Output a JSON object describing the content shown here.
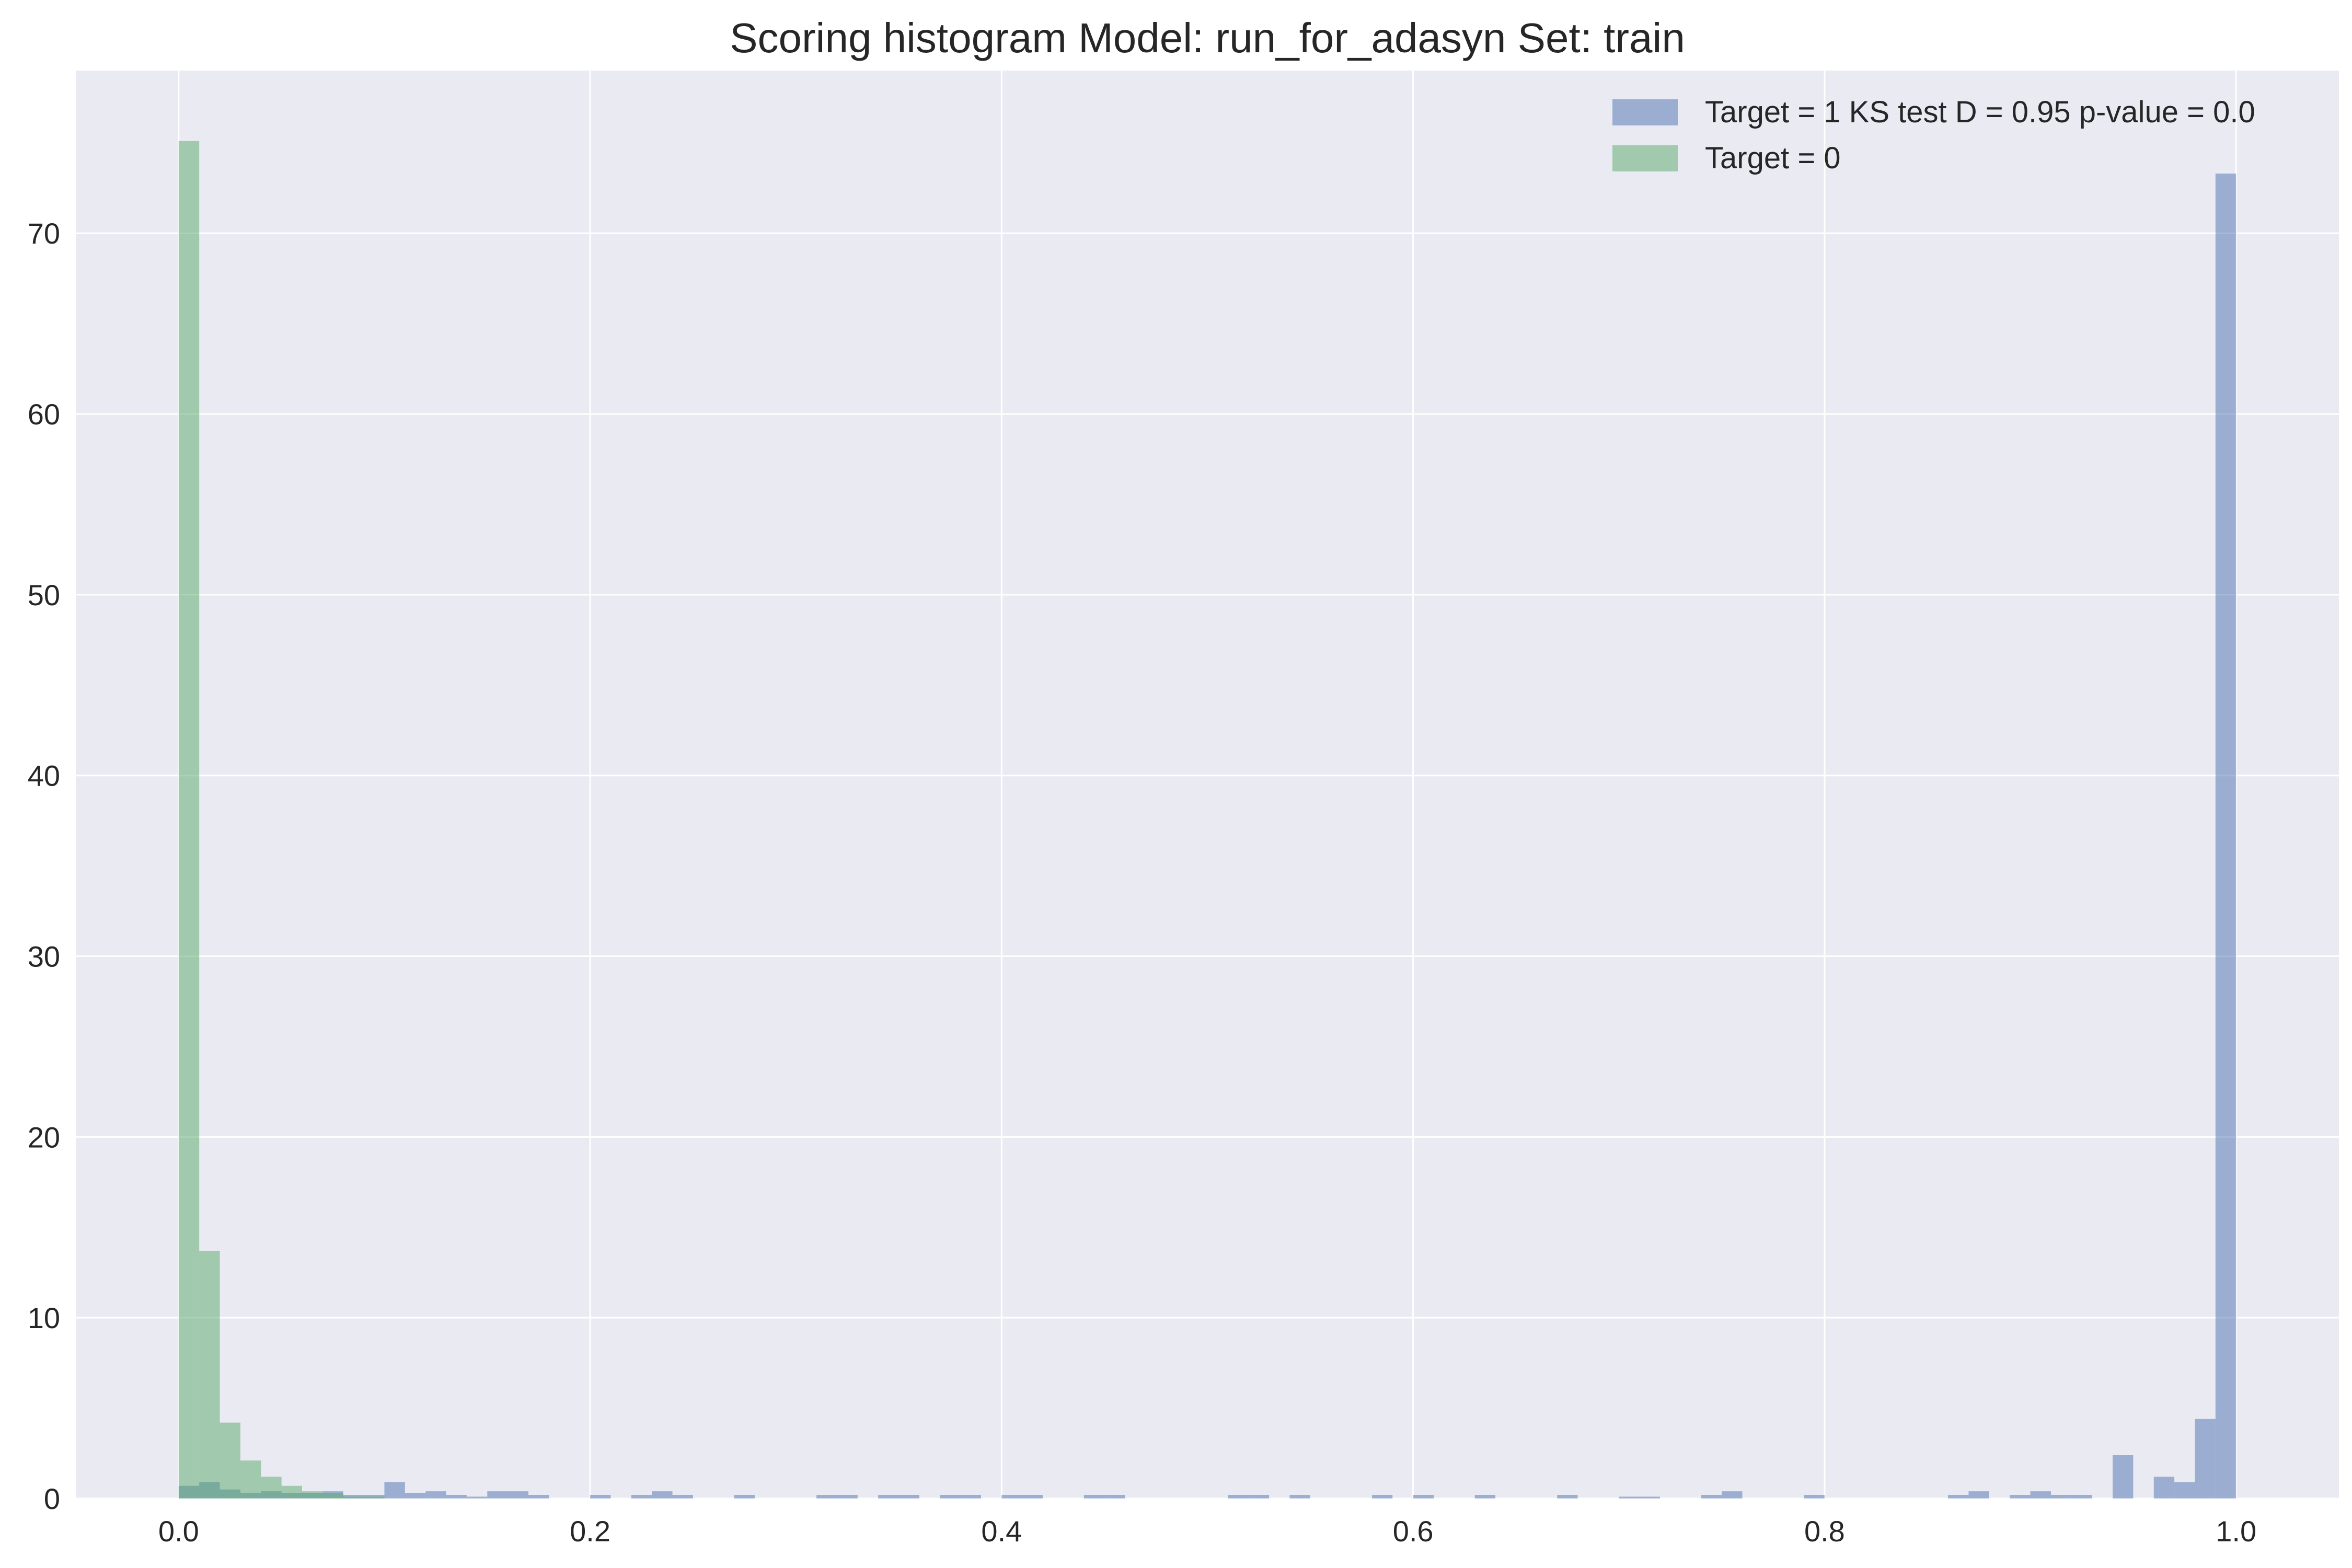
{
  "chart_data": {
    "type": "bar",
    "title": "Scoring histogram Model: run_for_adasyn Set: train",
    "xlabel": "",
    "ylabel": "",
    "xlim": [
      -0.05,
      1.05
    ],
    "ylim": [
      0,
      79
    ],
    "x_ticks": [
      0.0,
      0.2,
      0.4,
      0.6,
      0.8,
      1.0
    ],
    "x_tick_labels": [
      "0.0",
      "0.2",
      "0.4",
      "0.6",
      "0.8",
      "1.0"
    ],
    "y_ticks": [
      0,
      10,
      20,
      30,
      40,
      50,
      60,
      70
    ],
    "y_tick_labels": [
      "0",
      "10",
      "20",
      "30",
      "40",
      "50",
      "60",
      "70"
    ],
    "grid": true,
    "legend_position": "top-right",
    "bin_width": 0.01,
    "background_color": "#eaeaf2",
    "grid_color": "#ffffff",
    "series": [
      {
        "name": "Target = 1 KS test D = 0.95 p-value = 0.0",
        "color": "#4c72b0",
        "opacity": 0.5,
        "bins": [
          [
            0.0,
            0.7
          ],
          [
            0.01,
            0.9
          ],
          [
            0.02,
            0.5
          ],
          [
            0.03,
            0.3
          ],
          [
            0.04,
            0.4
          ],
          [
            0.05,
            0.3
          ],
          [
            0.06,
            0.3
          ],
          [
            0.07,
            0.4
          ],
          [
            0.08,
            0.2
          ],
          [
            0.09,
            0.2
          ],
          [
            0.1,
            0.9
          ],
          [
            0.11,
            0.3
          ],
          [
            0.12,
            0.4
          ],
          [
            0.13,
            0.2
          ],
          [
            0.14,
            0.1
          ],
          [
            0.15,
            0.4
          ],
          [
            0.16,
            0.4
          ],
          [
            0.17,
            0.2
          ],
          [
            0.2,
            0.2
          ],
          [
            0.22,
            0.2
          ],
          [
            0.23,
            0.4
          ],
          [
            0.24,
            0.2
          ],
          [
            0.27,
            0.2
          ],
          [
            0.31,
            0.2
          ],
          [
            0.32,
            0.2
          ],
          [
            0.34,
            0.2
          ],
          [
            0.35,
            0.2
          ],
          [
            0.37,
            0.2
          ],
          [
            0.38,
            0.2
          ],
          [
            0.4,
            0.2
          ],
          [
            0.41,
            0.2
          ],
          [
            0.44,
            0.2
          ],
          [
            0.45,
            0.2
          ],
          [
            0.51,
            0.2
          ],
          [
            0.52,
            0.2
          ],
          [
            0.54,
            0.2
          ],
          [
            0.58,
            0.2
          ],
          [
            0.6,
            0.2
          ],
          [
            0.63,
            0.2
          ],
          [
            0.67,
            0.2
          ],
          [
            0.7,
            0.1
          ],
          [
            0.71,
            0.1
          ],
          [
            0.74,
            0.2
          ],
          [
            0.75,
            0.4
          ],
          [
            0.79,
            0.2
          ],
          [
            0.86,
            0.2
          ],
          [
            0.87,
            0.4
          ],
          [
            0.89,
            0.2
          ],
          [
            0.9,
            0.4
          ],
          [
            0.91,
            0.2
          ],
          [
            0.92,
            0.2
          ],
          [
            0.94,
            2.4
          ],
          [
            0.96,
            1.2
          ],
          [
            0.97,
            0.9
          ],
          [
            0.98,
            4.4
          ],
          [
            0.99,
            73.3
          ]
        ]
      },
      {
        "name": "Target = 0",
        "color": "#55a868",
        "opacity": 0.5,
        "bins": [
          [
            0.0,
            75.1
          ],
          [
            0.01,
            13.7
          ],
          [
            0.02,
            4.2
          ],
          [
            0.03,
            2.1
          ],
          [
            0.04,
            1.2
          ],
          [
            0.05,
            0.7
          ],
          [
            0.06,
            0.4
          ],
          [
            0.07,
            0.3
          ],
          [
            0.08,
            0.1
          ],
          [
            0.09,
            0.1
          ]
        ]
      }
    ]
  }
}
